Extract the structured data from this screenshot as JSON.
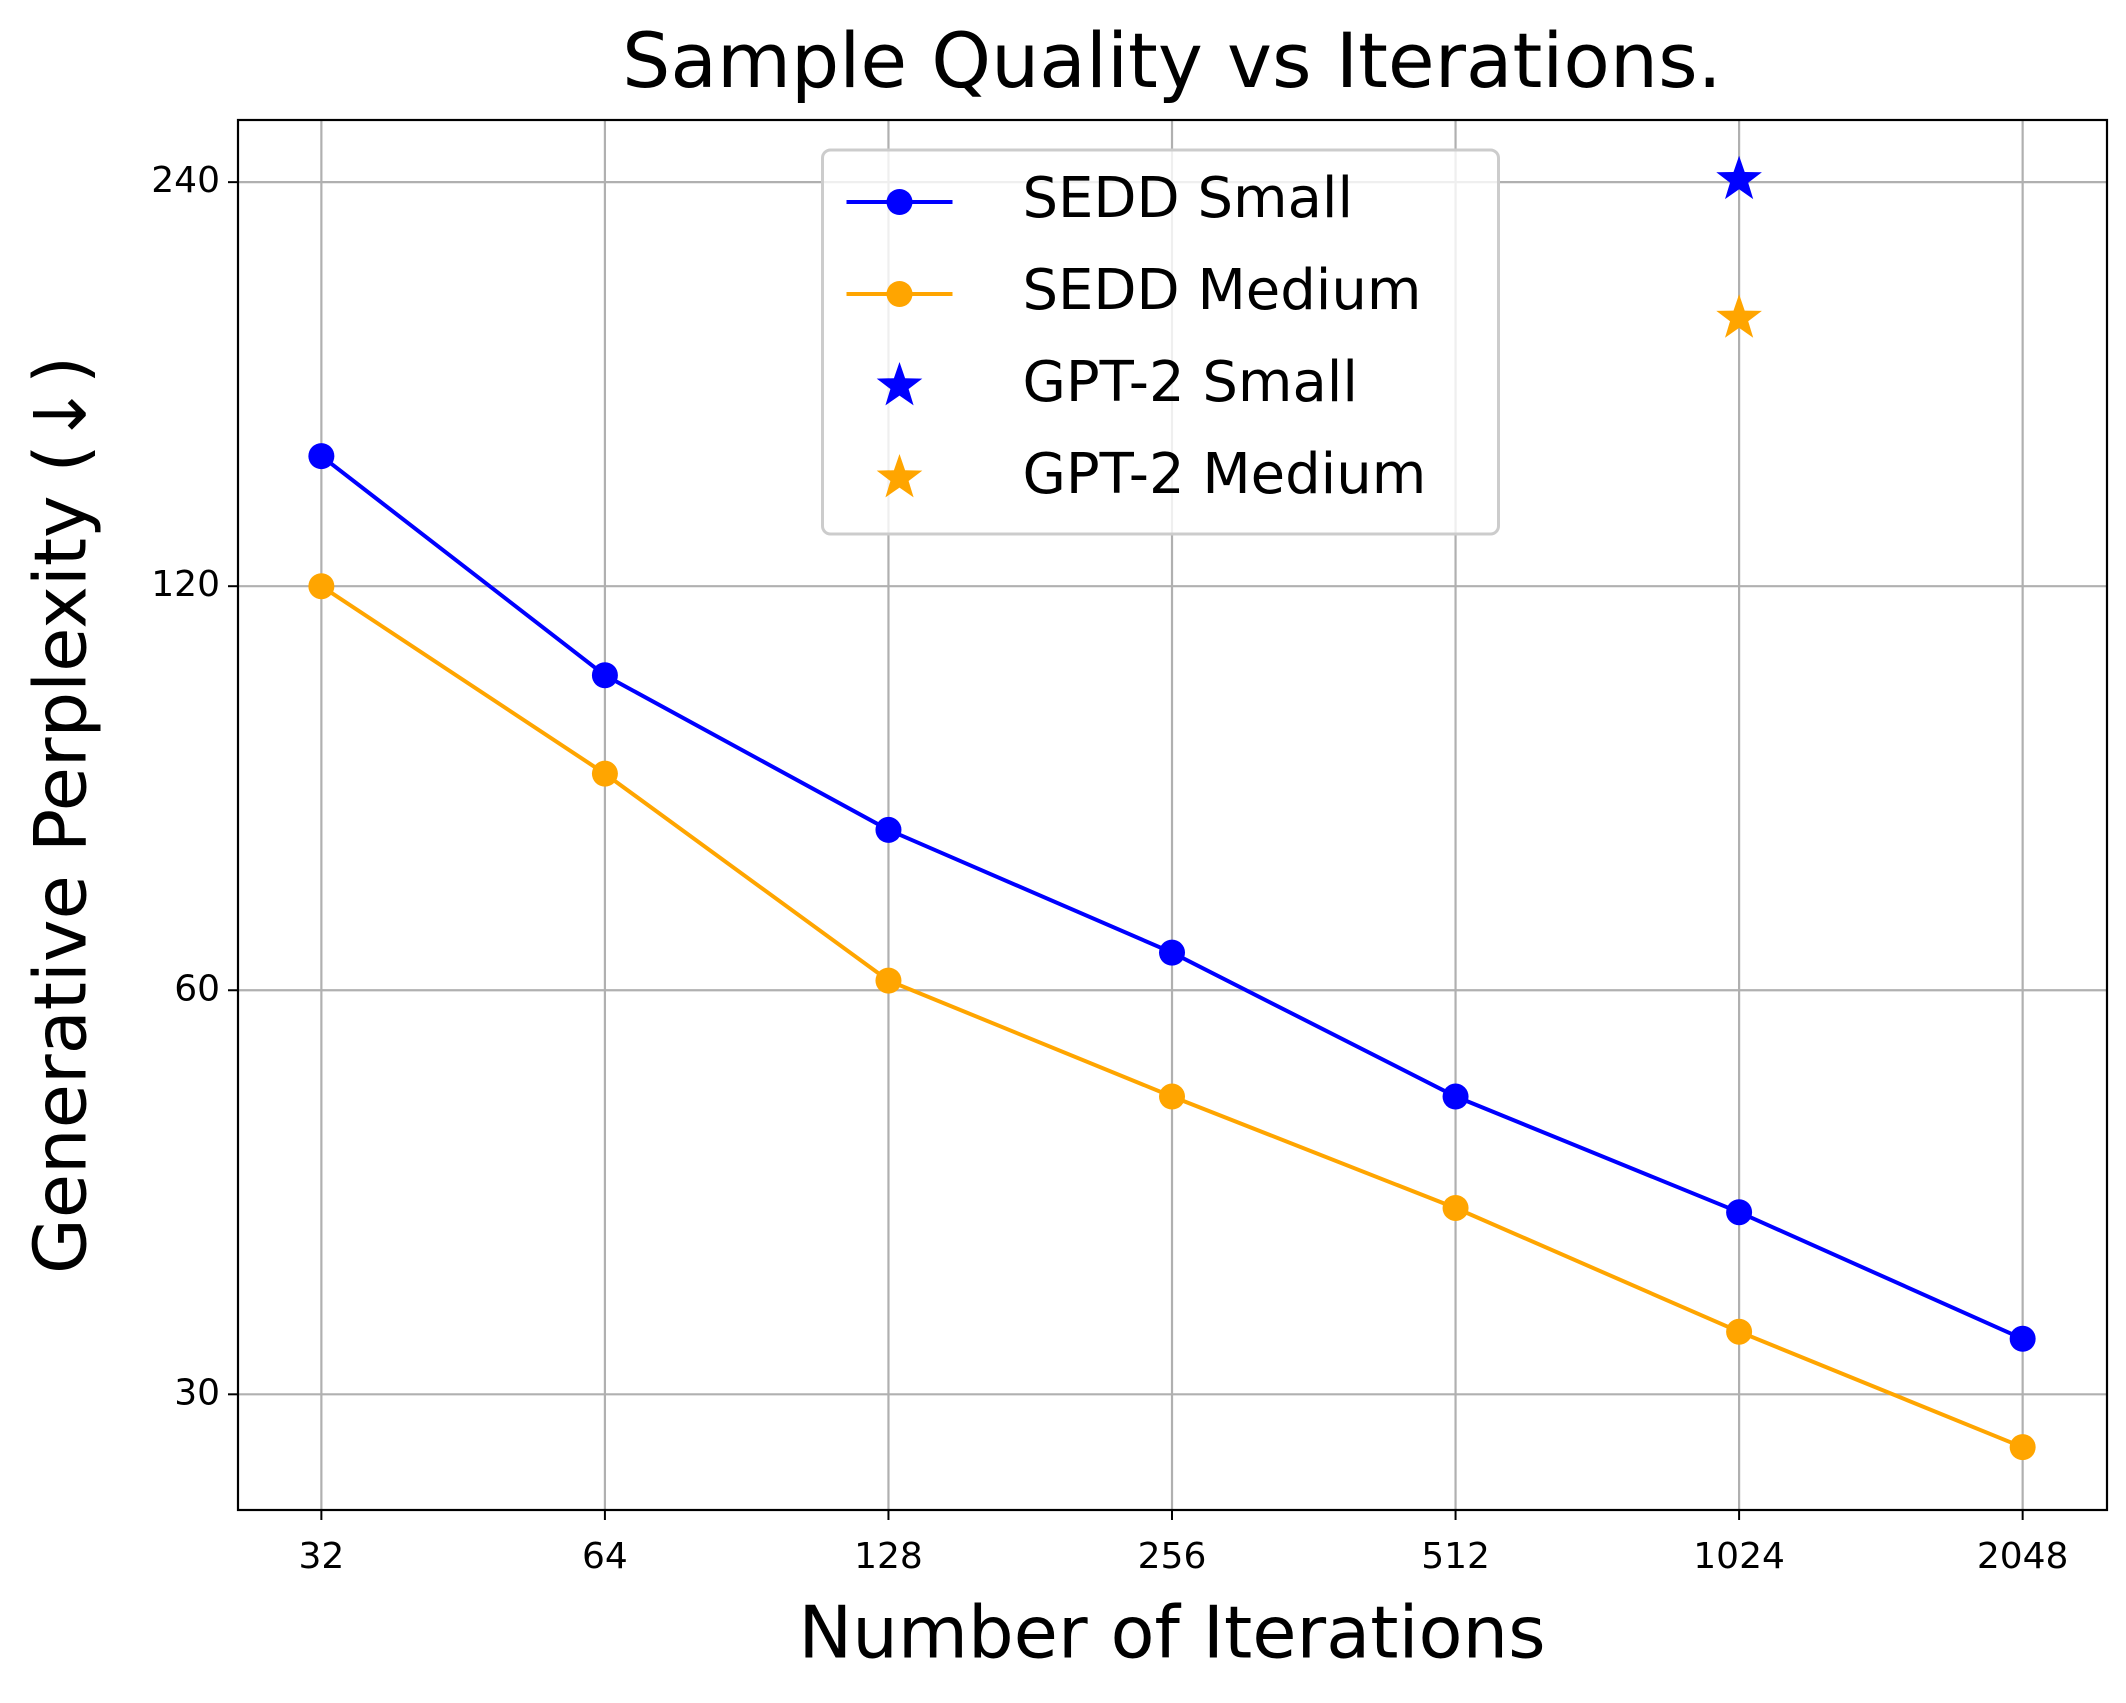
{
  "chart_data": {
    "type": "line",
    "title": "Sample Quality vs Iterations.",
    "x_label": "Number of Iterations",
    "y_label": "Generative Perplexity (↓)",
    "x": [
      32,
      64,
      128,
      256,
      512,
      1024,
      2048
    ],
    "series": [
      {
        "name": "SEDD Small",
        "color": "#0000ff",
        "marker": "circle",
        "values": [
          150,
          103,
          79,
          64,
          50,
          41,
          33
        ]
      },
      {
        "name": "SEDD Medium",
        "color": "#ffa500",
        "marker": "circle",
        "values": [
          120,
          87,
          61,
          50,
          41.3,
          33.4,
          27.4
        ]
      },
      {
        "name": "GPT-2 Small",
        "color": "#0000ff",
        "marker": "star",
        "x": [
          1024
        ],
        "values": [
          241
        ]
      },
      {
        "name": "GPT-2 Medium",
        "color": "#ffa500",
        "marker": "star",
        "x": [
          1024
        ],
        "values": [
          190
        ]
      }
    ],
    "xscale": "log",
    "yscale": "log",
    "xlim": [
      26.1,
      2517
    ],
    "ylim": [
      24.6,
      267
    ],
    "xticks": [
      32,
      64,
      128,
      256,
      512,
      1024,
      2048
    ],
    "yticks": [
      30,
      60,
      120,
      240
    ],
    "grid": true,
    "legend": "upper center"
  }
}
